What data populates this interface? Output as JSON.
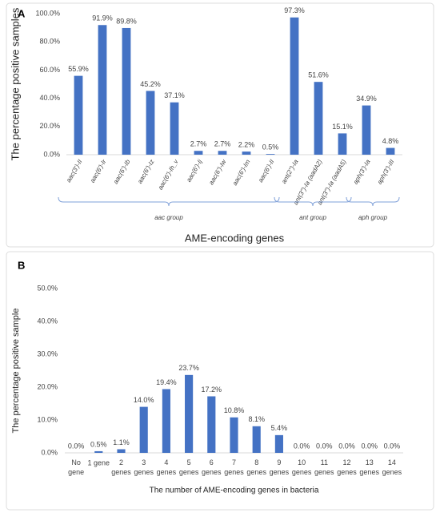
{
  "chart_data": [
    {
      "type": "bar",
      "panel": "A",
      "ylabel": "The percentage positive samples",
      "xlabel": "AME-encoding genes",
      "categories": [
        "aac(3')-II",
        "aac(6')-Ir",
        "aac(6')-Ib",
        "aac(6')-Iz",
        "aac(6')-Ih_v",
        "aac(6')-Ij",
        "aac(6')-Iw",
        "aac(6')-Im",
        "aac(6')-II",
        "ant(2\")-Ia",
        "ant(3\")-Ia (aadA2)",
        "ant(3\")-Ia (aadA5)",
        "aph(3')-Ia",
        "aph(3')-III"
      ],
      "values": [
        55.9,
        91.9,
        89.8,
        45.2,
        37.1,
        2.7,
        2.7,
        2.2,
        0.5,
        97.3,
        51.6,
        15.1,
        34.9,
        4.8
      ],
      "value_labels": [
        "55.9%",
        "91.9%",
        "89.8%",
        "45.2%",
        "37.1%",
        "2.7%",
        "2.7%",
        "2.2%",
        "0.5%",
        "97.3%",
        "51.6%",
        "15.1%",
        "34.9%",
        "4.8%"
      ],
      "groups": [
        {
          "name": "aac group",
          "categories": [
            "aac(3')-II",
            "aac(6')-Ir",
            "aac(6')-Ib",
            "aac(6')-Iz",
            "aac(6')-Ih_v",
            "aac(6')-Ij",
            "aac(6')-Iw",
            "aac(6')-Im",
            "aac(6')-II"
          ]
        },
        {
          "name": "ant group",
          "categories": [
            "ant(2\")-Ia",
            "ant(3\")-Ia (aadA2)",
            "ant(3\")-Ia (aadA5)"
          ]
        },
        {
          "name": "aph group",
          "categories": [
            "aph(3')-Ia",
            "aph(3')-III"
          ]
        }
      ],
      "color": "#4472c4",
      "ylim": [
        0,
        100
      ],
      "yticks": [
        {
          "value": 0,
          "label": "0.0%"
        },
        {
          "value": 20,
          "label": "20.0%"
        },
        {
          "value": 40,
          "label": "40.0%"
        },
        {
          "value": 60,
          "label": "60.0%"
        },
        {
          "value": 80,
          "label": "80.0%"
        },
        {
          "value": 100,
          "label": "100.0%"
        }
      ]
    },
    {
      "type": "bar",
      "panel": "B",
      "ylabel": "The percentage positive sample",
      "xlabel": "The number of AME-encoding genes in bacteria",
      "categories": [
        "No gene",
        "1 gene",
        "2 genes",
        "3 genes",
        "4 genes",
        "5 genes",
        "6 genes",
        "7 genes",
        "8 genes",
        "9 genes",
        "10 genes",
        "11 genes",
        "12 genes",
        "13 genes",
        "14 genes"
      ],
      "values": [
        0,
        0.5,
        1.1,
        14,
        19.4,
        23.7,
        17.2,
        10.8,
        8.1,
        5.4,
        0,
        0,
        0,
        0,
        0
      ],
      "value_labels": [
        "0.0%",
        "0.5%",
        "1.1%",
        "14.0%",
        "19.4%",
        "23.7%",
        "17.2%",
        "10.8%",
        "8.1%",
        "5.4%",
        "0.0%",
        "0.0%",
        "0.0%",
        "0.0%",
        "0.0%"
      ],
      "color": "#4472c4",
      "ylim": [
        0,
        50
      ],
      "yticks": [
        {
          "value": 0,
          "label": "0.0%"
        },
        {
          "value": 10,
          "label": "10.0%"
        },
        {
          "value": 20,
          "label": "20.0%"
        },
        {
          "value": 30,
          "label": "30.0%"
        },
        {
          "value": 40,
          "label": "40.0%"
        },
        {
          "value": 50,
          "label": "50.0%"
        }
      ]
    }
  ]
}
